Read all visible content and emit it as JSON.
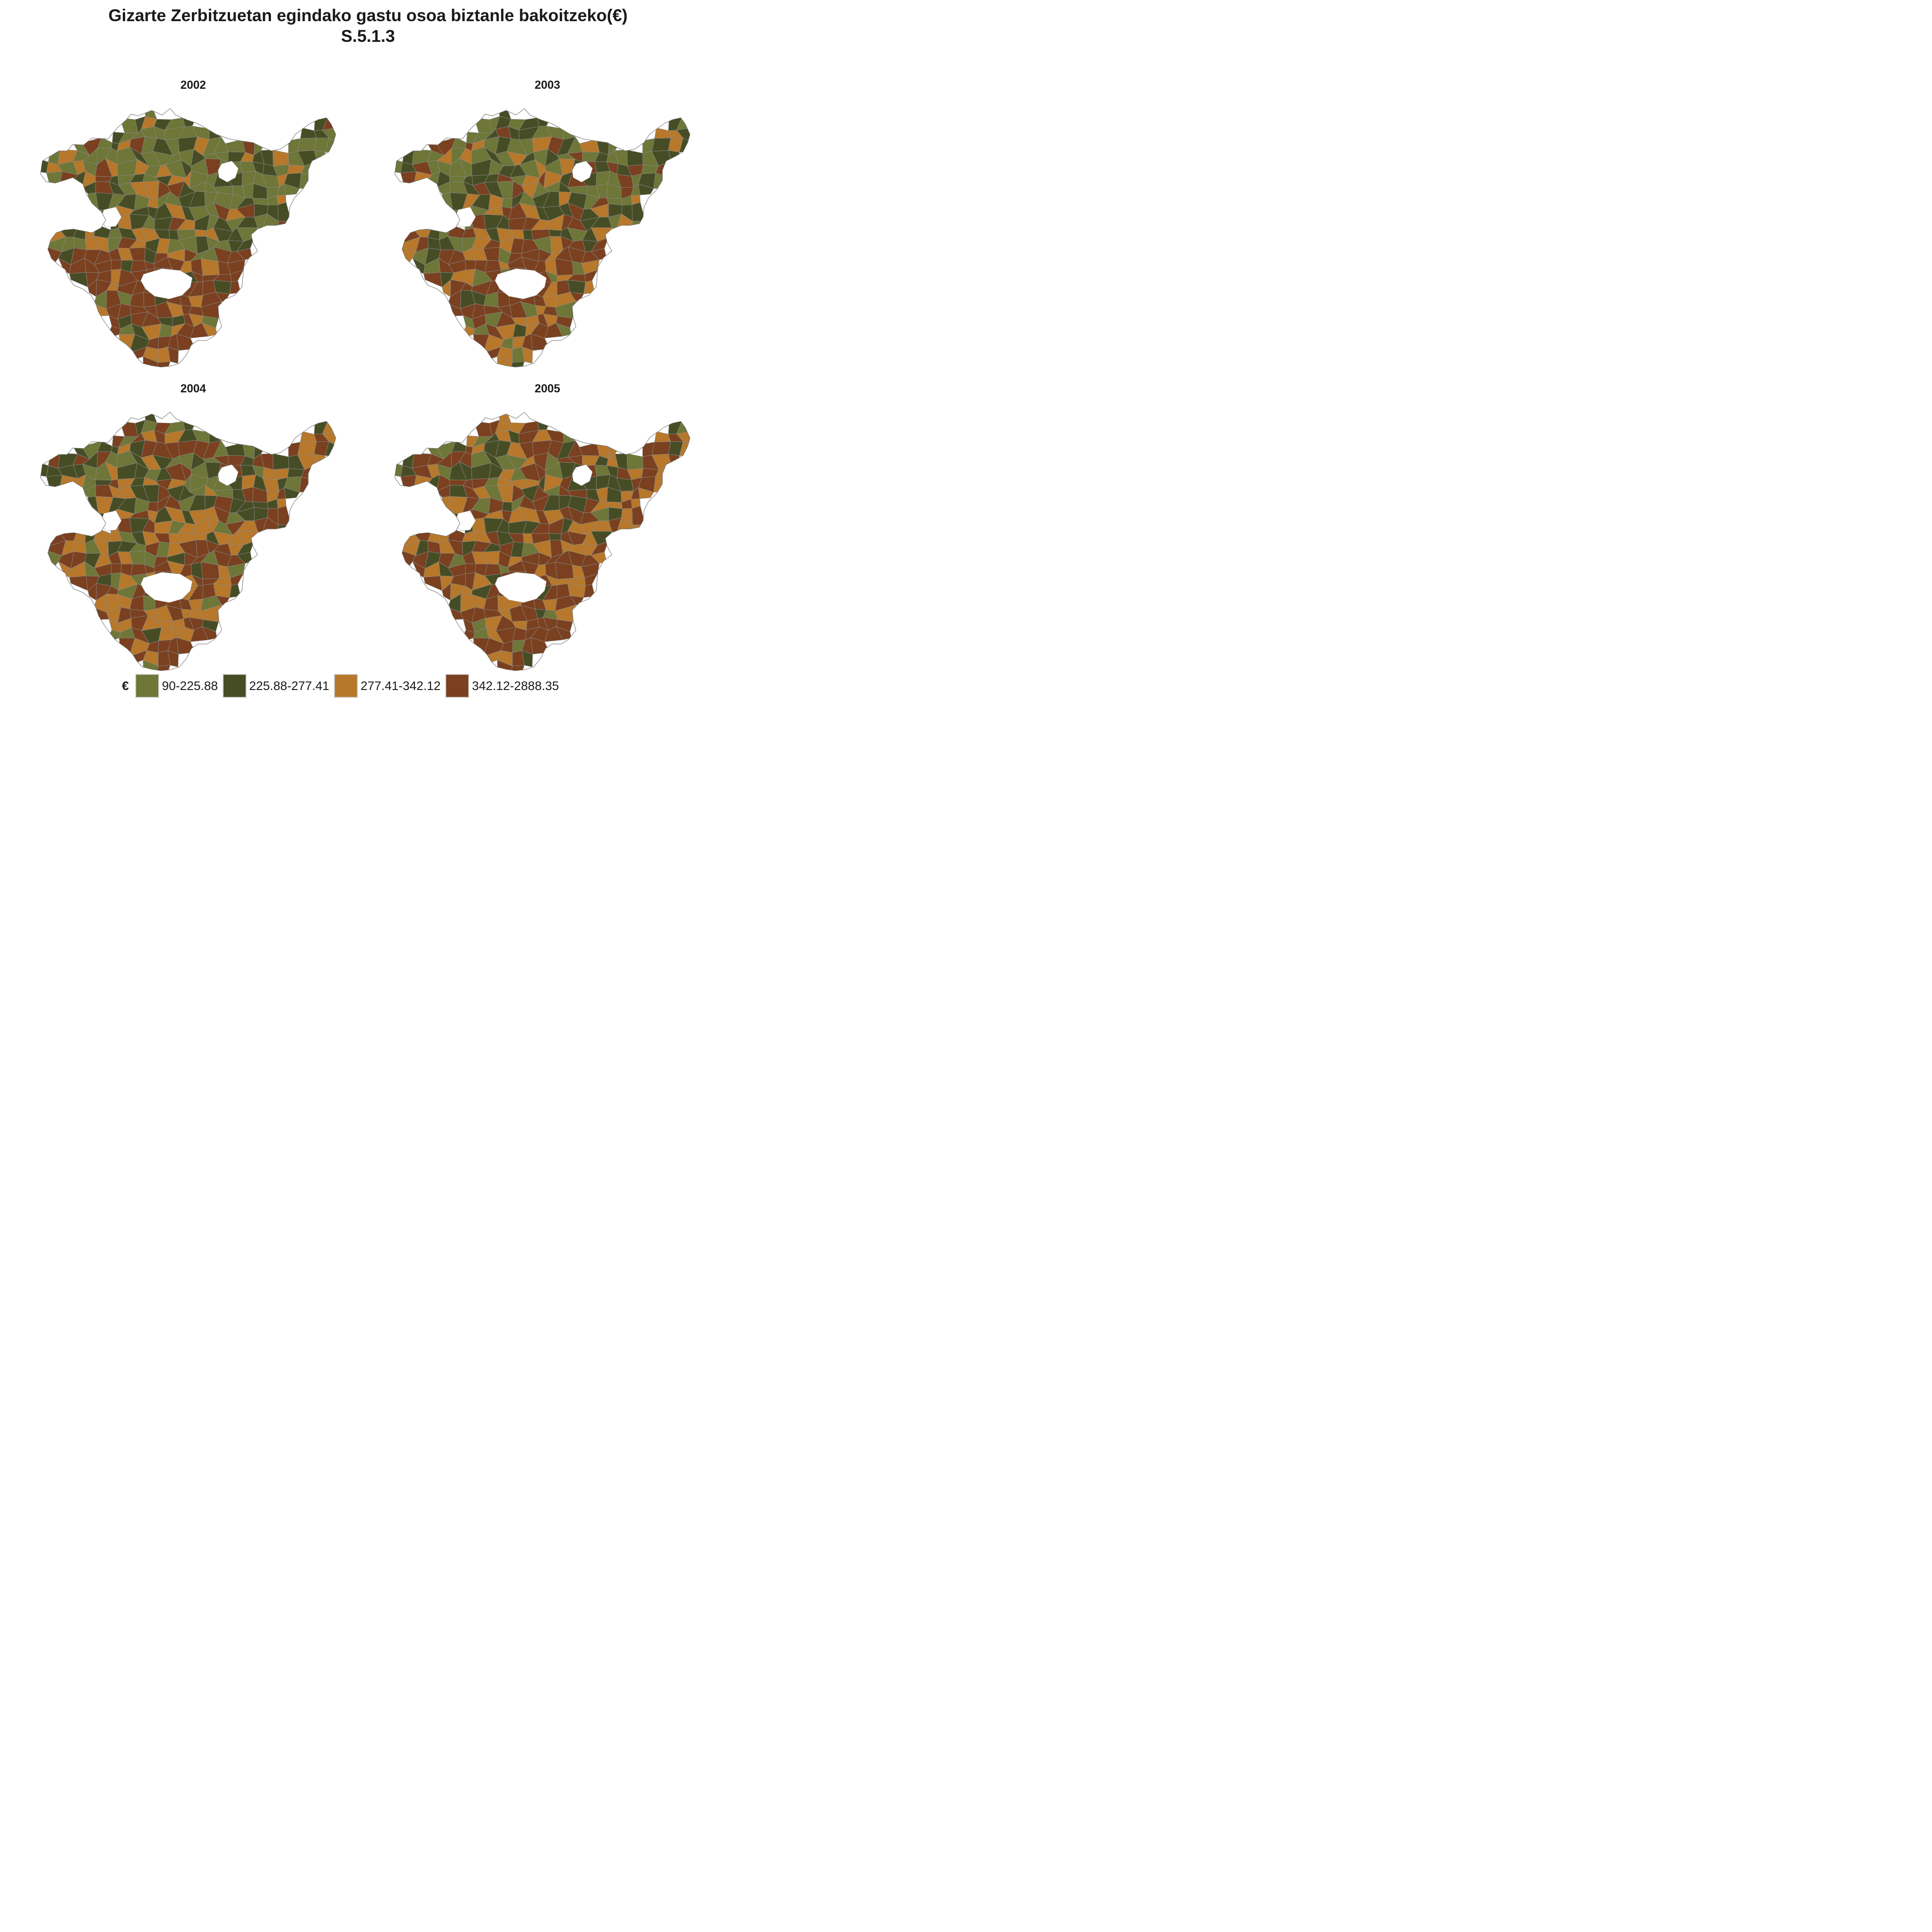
{
  "title": {
    "line1": "Gizarte Zerbitzuetan egindako gastu osoa biztanle bakoitzeko(€)",
    "line2": "S.5.1.3"
  },
  "panels": [
    "2002",
    "2003",
    "2004",
    "2005"
  ],
  "legend": {
    "title": "€",
    "items": [
      {
        "label": "90-225.88",
        "color": "#6e7638"
      },
      {
        "label": "225.88-277.41",
        "color": "#464d25"
      },
      {
        "label": "277.41-342.12",
        "color": "#b7782b"
      },
      {
        "label": "342.12-2888.35",
        "color": "#7a401f"
      }
    ]
  },
  "colors": {
    "border": "#8a8a8a",
    "hole": "#ffffff"
  }
}
